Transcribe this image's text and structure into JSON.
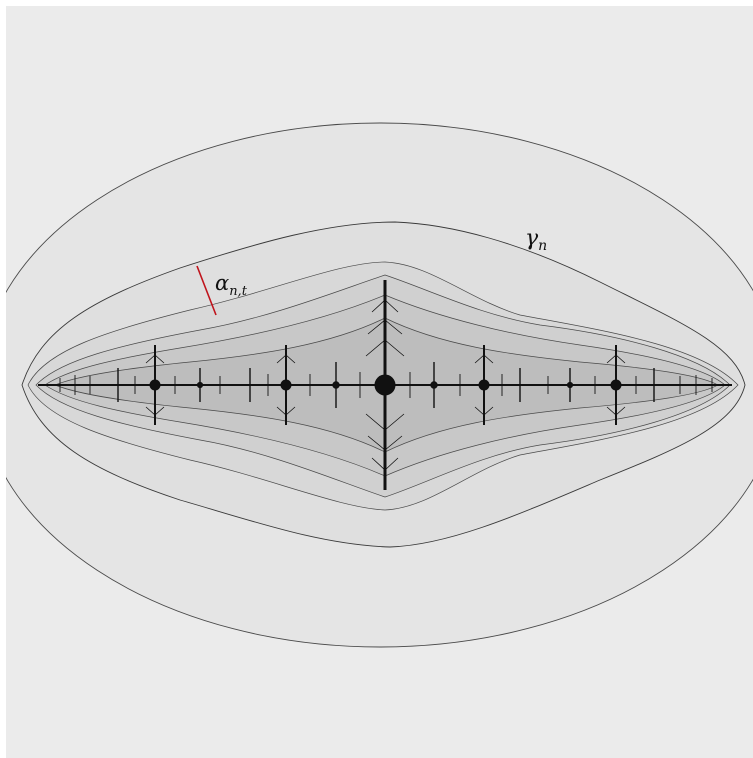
{
  "labels": {
    "gamma": {
      "base": "γ",
      "sub": "n"
    },
    "alpha": {
      "base": "α",
      "sub": "n,t"
    }
  },
  "colors": {
    "background": "#ebebeb",
    "outer_region": "#e5e5e5",
    "inner_region": "#dedede",
    "contour": "#4a4a4a",
    "fractal": "#111111",
    "arc": "#c0141c"
  }
}
